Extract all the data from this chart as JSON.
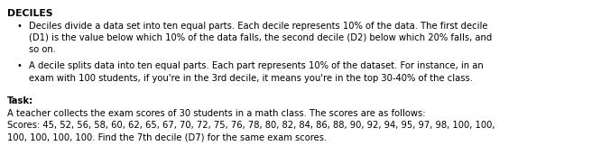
{
  "title": "DECILES",
  "bullet1_line1": "Deciles divide a data set into ten equal parts. Each decile represents 10% of the data. The first decile",
  "bullet1_line2": "(D1) is the value below which 10% of the data falls, the second decile (D2) below which 20% falls, and",
  "bullet1_line3": "so on.",
  "bullet2_line1": "A decile splits data into ten equal parts. Each part represents 10% of the dataset. For instance, in an",
  "bullet2_line2": "exam with 100 students, if you're in the 3rd decile, it means you're in the top 30-40% of the class.",
  "task_label": "Task:",
  "task_line1": "A teacher collects the exam scores of 30 students in a math class. The scores are as follows:",
  "task_line2": "Scores: 45, 52, 56, 58, 60, 62, 65, 67, 70, 72, 75, 76, 78, 80, 82, 84, 86, 88, 90, 92, 94, 95, 97, 98, 100, 100,",
  "task_line3": "100, 100, 100, 100. Find the 7th decile (D7) for the same exam scores.",
  "bg_color": "#ffffff",
  "text_color": "#000000",
  "font_size": 7.2,
  "title_font_size": 7.8
}
